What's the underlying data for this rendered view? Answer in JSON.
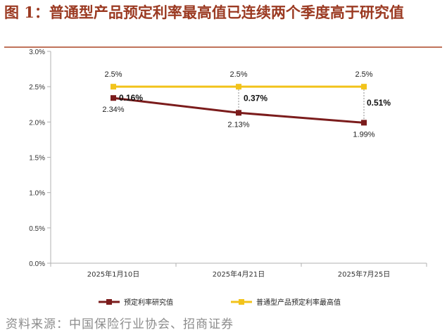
{
  "figure": {
    "title": "图 1：普通型产品预定利率最高值已连续两个季度高于研究值",
    "source": "资料来源：中国保险行业协会、招商证券"
  },
  "colors": {
    "title": "#9b3a22",
    "research_series": "#7b1c1c",
    "max_series": "#f2c31b",
    "axis": "#b0b0b0"
  },
  "chart_data": {
    "type": "line",
    "categories": [
      "2025年1月10日",
      "2025年4月21日",
      "2025年7月25日"
    ],
    "series": [
      {
        "name": "预定利率研究值",
        "values": [
          2.34,
          2.13,
          1.99
        ],
        "labels": [
          "2.34%",
          "2.13%",
          "1.99%"
        ],
        "color": "#7b1c1c"
      },
      {
        "name": "普通型产品预定利率最高值",
        "values": [
          2.5,
          2.5,
          2.5
        ],
        "labels": [
          "2.5%",
          "2.5%",
          "2.5%"
        ],
        "color": "#f2c31b"
      }
    ],
    "differences": [
      "0.16%",
      "0.37%",
      "0.51%"
    ],
    "y_ticks": [
      "0.0%",
      "0.5%",
      "1.0%",
      "1.5%",
      "2.0%",
      "2.5%",
      "3.0%"
    ],
    "ylim": [
      0,
      3.0
    ],
    "legend_position": "bottom",
    "grid": false
  }
}
